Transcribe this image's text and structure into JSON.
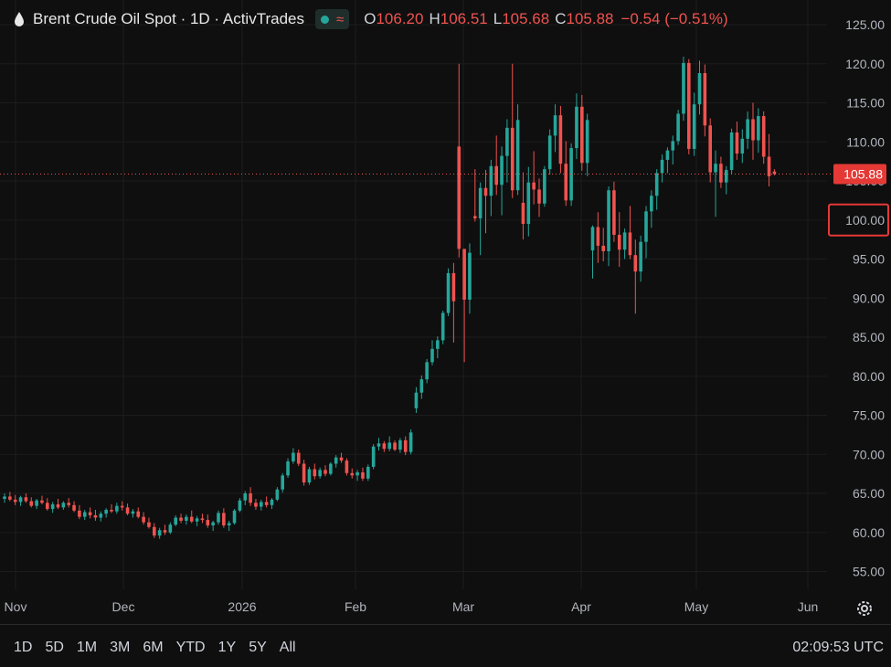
{
  "header": {
    "title": "Brent Crude Oil Spot · 1D · ActivTrades",
    "wave_symbol": "≈",
    "open_label": "O",
    "open": "106.20",
    "high_label": "H",
    "high": "106.51",
    "low_label": "L",
    "low": "105.68",
    "close_label": "C",
    "close": "105.88",
    "change": "−0.54 (−0.51%)"
  },
  "timeframes": [
    "1D",
    "5D",
    "1M",
    "3M",
    "6M",
    "YTD",
    "1Y",
    "5Y",
    "All"
  ],
  "clock": "02:09:53 UTC",
  "colors": {
    "up": "#26a69a",
    "down": "#ef5350",
    "background": "#0f0f0f",
    "highlight_box": "#e53935"
  },
  "chart_data": {
    "type": "candlestick",
    "title": "Brent Crude Oil Spot · 1D · ActivTrades",
    "ylim": [
      52,
      127
    ],
    "y_ticks": [
      "125.00",
      "120.00",
      "115.00",
      "110.00",
      "105.00",
      "100.00",
      "95.00",
      "90.00",
      "85.00",
      "80.00",
      "75.00",
      "70.00",
      "65.00",
      "60.00",
      "55.00"
    ],
    "x_ticks": [
      "Nov",
      "Dec",
      "2026",
      "Feb",
      "Mar",
      "Apr",
      "May",
      "Jun"
    ],
    "last_price": "105.88",
    "highlighted_level": "100.00",
    "grid": true,
    "ohlc": [
      [
        64.3,
        65.0,
        63.8,
        64.6
      ],
      [
        64.6,
        65.2,
        64.0,
        64.2
      ],
      [
        64.2,
        64.8,
        63.5,
        63.9
      ],
      [
        63.9,
        64.7,
        63.4,
        64.5
      ],
      [
        64.5,
        65.0,
        63.8,
        64.0
      ],
      [
        64.0,
        64.5,
        63.2,
        63.4
      ],
      [
        63.4,
        64.3,
        63.0,
        64.1
      ],
      [
        64.1,
        64.7,
        63.6,
        63.8
      ],
      [
        63.8,
        64.4,
        62.8,
        63.0
      ],
      [
        63.0,
        63.9,
        62.5,
        63.6
      ],
      [
        63.6,
        64.3,
        63.0,
        63.2
      ],
      [
        63.2,
        64.0,
        62.9,
        63.8
      ],
      [
        63.8,
        64.4,
        63.2,
        63.5
      ],
      [
        63.5,
        64.0,
        62.6,
        62.8
      ],
      [
        62.8,
        63.5,
        61.7,
        62.0
      ],
      [
        62.0,
        62.9,
        61.6,
        62.6
      ],
      [
        62.6,
        63.2,
        61.8,
        62.2
      ],
      [
        62.2,
        62.9,
        61.5,
        61.9
      ],
      [
        61.9,
        62.7,
        61.4,
        62.4
      ],
      [
        62.4,
        63.1,
        61.9,
        62.9
      ],
      [
        62.9,
        63.6,
        62.5,
        62.7
      ],
      [
        62.7,
        63.8,
        62.4,
        63.4
      ],
      [
        63.4,
        64.0,
        62.8,
        63.2
      ],
      [
        63.2,
        63.7,
        62.2,
        62.4
      ],
      [
        62.4,
        63.0,
        61.9,
        62.7
      ],
      [
        62.7,
        63.2,
        61.8,
        62.0
      ],
      [
        62.0,
        62.6,
        61.0,
        61.3
      ],
      [
        61.3,
        61.9,
        60.5,
        60.7
      ],
      [
        60.7,
        61.2,
        59.3,
        59.6
      ],
      [
        59.6,
        60.6,
        59.2,
        60.3
      ],
      [
        60.3,
        61.0,
        59.7,
        60.0
      ],
      [
        60.0,
        61.3,
        59.8,
        61.0
      ],
      [
        61.0,
        62.2,
        60.8,
        61.9
      ],
      [
        61.9,
        62.4,
        61.2,
        61.5
      ],
      [
        61.5,
        62.3,
        61.0,
        62.0
      ],
      [
        62.0,
        62.8,
        61.2,
        61.4
      ],
      [
        61.4,
        62.1,
        60.8,
        61.8
      ],
      [
        61.8,
        62.4,
        61.2,
        61.6
      ],
      [
        61.6,
        62.3,
        60.6,
        60.9
      ],
      [
        60.9,
        61.5,
        60.2,
        61.3
      ],
      [
        61.3,
        62.8,
        61.0,
        62.5
      ],
      [
        62.5,
        63.1,
        60.6,
        60.9
      ],
      [
        60.9,
        61.5,
        60.2,
        61.2
      ],
      [
        61.2,
        63.0,
        61.0,
        62.8
      ],
      [
        62.8,
        64.4,
        62.6,
        64.1
      ],
      [
        64.1,
        65.3,
        63.5,
        65.0
      ],
      [
        65.0,
        65.8,
        63.4,
        63.8
      ],
      [
        63.8,
        64.3,
        62.9,
        63.3
      ],
      [
        63.3,
        64.2,
        62.8,
        63.9
      ],
      [
        63.9,
        64.6,
        63.2,
        63.5
      ],
      [
        63.5,
        64.4,
        63.0,
        64.2
      ],
      [
        64.2,
        65.8,
        64.0,
        65.5
      ],
      [
        65.5,
        67.6,
        65.1,
        67.3
      ],
      [
        67.3,
        69.5,
        67.0,
        69.1
      ],
      [
        69.1,
        70.8,
        68.8,
        70.2
      ],
      [
        70.2,
        70.6,
        68.5,
        68.8
      ],
      [
        68.8,
        69.3,
        66.0,
        66.4
      ],
      [
        66.4,
        68.4,
        66.1,
        68.1
      ],
      [
        68.1,
        68.8,
        66.8,
        67.2
      ],
      [
        67.2,
        68.3,
        66.9,
        68.0
      ],
      [
        68.0,
        68.6,
        67.2,
        67.5
      ],
      [
        67.5,
        69.0,
        67.3,
        68.8
      ],
      [
        68.8,
        69.9,
        68.3,
        69.6
      ],
      [
        69.6,
        70.2,
        68.9,
        69.2
      ],
      [
        69.2,
        69.5,
        67.3,
        67.6
      ],
      [
        67.6,
        68.2,
        66.9,
        67.3
      ],
      [
        67.3,
        68.0,
        66.6,
        67.7
      ],
      [
        67.7,
        68.3,
        66.6,
        66.9
      ],
      [
        66.9,
        68.7,
        66.6,
        68.4
      ],
      [
        68.4,
        71.3,
        68.1,
        71.0
      ],
      [
        71.0,
        72.1,
        70.5,
        71.4
      ],
      [
        71.4,
        71.7,
        70.3,
        70.7
      ],
      [
        70.7,
        72.3,
        70.4,
        71.5
      ],
      [
        71.5,
        71.8,
        70.4,
        70.6
      ],
      [
        70.6,
        72.1,
        70.2,
        71.8
      ],
      [
        71.8,
        72.3,
        69.9,
        70.3
      ],
      [
        70.3,
        73.2,
        70.0,
        72.8
      ],
      [
        75.9,
        78.6,
        75.3,
        77.9
      ],
      [
        77.9,
        80.1,
        77.1,
        79.6
      ],
      [
        79.6,
        82.2,
        79.1,
        81.8
      ],
      [
        81.8,
        84.6,
        81.4,
        83.5
      ],
      [
        83.5,
        85.1,
        82.3,
        84.6
      ],
      [
        84.6,
        88.4,
        84.1,
        88.1
      ],
      [
        88.1,
        93.8,
        87.7,
        93.2
      ],
      [
        93.2,
        94.5,
        84.3,
        89.6
      ],
      [
        109.4,
        120.0,
        95.2,
        96.3
      ],
      [
        96.3,
        96.0,
        81.8,
        89.8
      ],
      [
        89.8,
        97.0,
        88.0,
        95.8
      ],
      [
        100.5,
        106.5,
        99.8,
        100.2
      ],
      [
        100.2,
        104.8,
        95.5,
        104.1
      ],
      [
        104.1,
        106.4,
        98.3,
        103.1
      ],
      [
        103.1,
        107.7,
        100.5,
        106.9
      ],
      [
        106.9,
        110.8,
        103.2,
        104.5
      ],
      [
        104.5,
        109.4,
        100.6,
        108.2
      ],
      [
        108.2,
        112.9,
        104.8,
        111.8
      ],
      [
        111.8,
        120.0,
        102.8,
        103.8
      ],
      [
        103.8,
        114.8,
        103.2,
        112.8
      ],
      [
        102.2,
        106.1,
        97.5,
        99.5
      ],
      [
        99.5,
        106.8,
        97.9,
        104.8
      ],
      [
        104.8,
        108.8,
        102.0,
        103.9
      ],
      [
        103.9,
        105.3,
        100.4,
        102.1
      ],
      [
        102.1,
        106.9,
        101.7,
        106.5
      ],
      [
        106.5,
        111.6,
        105.8,
        110.8
      ],
      [
        110.8,
        114.8,
        108.7,
        113.4
      ],
      [
        113.4,
        114.6,
        106.0,
        107.2
      ],
      [
        107.2,
        110.1,
        101.8,
        102.5
      ],
      [
        102.5,
        109.8,
        101.8,
        109.2
      ],
      [
        109.2,
        116.2,
        107.8,
        114.5
      ],
      [
        114.5,
        116.0,
        106.3,
        107.3
      ],
      [
        107.3,
        113.6,
        105.6,
        112.8
      ],
      [
        96.1,
        99.3,
        92.5,
        99.1
      ],
      [
        99.1,
        101.0,
        94.5,
        96.7
      ],
      [
        96.7,
        99.0,
        94.7,
        96.0
      ],
      [
        96.0,
        104.3,
        94.1,
        103.8
      ],
      [
        103.8,
        104.9,
        97.2,
        98.1
      ],
      [
        98.1,
        101.0,
        94.0,
        96.2
      ],
      [
        96.2,
        98.9,
        95.0,
        98.4
      ],
      [
        98.4,
        101.8,
        95.0,
        95.5
      ],
      [
        95.5,
        97.5,
        88.0,
        93.4
      ],
      [
        93.4,
        98.0,
        92.1,
        97.2
      ],
      [
        97.2,
        101.8,
        95.1,
        101.1
      ],
      [
        101.1,
        103.8,
        99.0,
        103.1
      ],
      [
        103.1,
        106.5,
        101.3,
        106.0
      ],
      [
        106.0,
        108.4,
        104.8,
        107.7
      ],
      [
        107.7,
        109.3,
        106.0,
        108.9
      ],
      [
        108.9,
        110.8,
        107.1,
        110.1
      ],
      [
        110.1,
        114.1,
        109.6,
        113.6
      ],
      [
        113.6,
        120.9,
        112.7,
        120.1
      ],
      [
        120.1,
        120.6,
        108.4,
        109.1
      ],
      [
        109.1,
        116.3,
        108.2,
        114.8
      ],
      [
        114.8,
        120.4,
        113.5,
        118.8
      ],
      [
        118.8,
        119.9,
        110.7,
        112.1
      ],
      [
        112.1,
        113.0,
        104.8,
        106.1
      ],
      [
        106.1,
        108.9,
        100.4,
        107.2
      ],
      [
        107.2,
        108.1,
        104.1,
        104.8
      ],
      [
        104.8,
        106.9,
        103.3,
        106.4
      ],
      [
        106.4,
        111.7,
        105.9,
        111.2
      ],
      [
        111.2,
        112.6,
        107.7,
        108.5
      ],
      [
        108.5,
        111.6,
        107.3,
        110.4
      ],
      [
        110.4,
        113.9,
        109.1,
        112.9
      ],
      [
        112.9,
        115.0,
        107.7,
        110.2
      ],
      [
        110.2,
        114.3,
        108.6,
        113.3
      ],
      [
        113.3,
        113.9,
        107.2,
        108.1
      ],
      [
        108.1,
        111.0,
        104.3,
        105.6
      ],
      [
        106.2,
        106.5,
        105.7,
        105.9
      ]
    ]
  }
}
